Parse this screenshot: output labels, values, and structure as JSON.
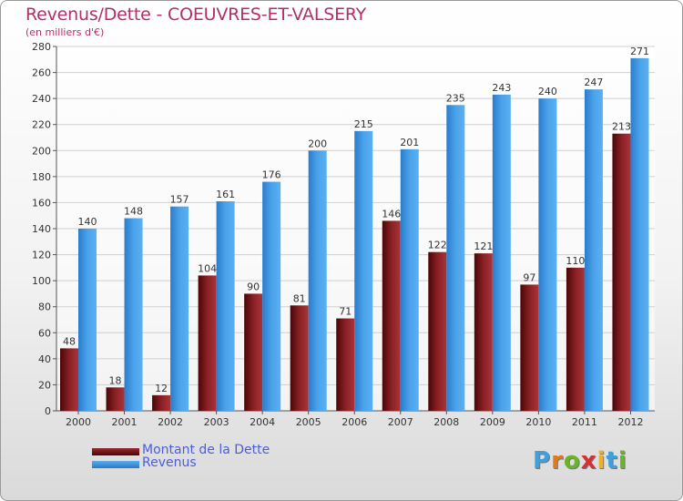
{
  "header": {
    "title": "Revenus/Dette - COEUVRES-ET-VALSERY",
    "subtitle": "(en milliers d'€)"
  },
  "legend": {
    "items": [
      {
        "label": "Montant de la Dette",
        "color": "#7a1518"
      },
      {
        "label": "Revenus",
        "color": "#3a8fdc"
      }
    ]
  },
  "brand": {
    "logo_text": "Proxiti",
    "letter_colors": [
      "#3fa0dc",
      "#e07a20",
      "#6ab42a",
      "#d63030",
      "#f0b020",
      "#3fa0dc",
      "#6ab42a"
    ]
  },
  "chart_data": {
    "type": "bar",
    "title": "Revenus/Dette - COEUVRES-ET-VALSERY",
    "subtitle": "(en milliers d'€)",
    "categories": [
      "2000",
      "2001",
      "2002",
      "2003",
      "2004",
      "2005",
      "2006",
      "2007",
      "2008",
      "2009",
      "2010",
      "2011",
      "2012"
    ],
    "series": [
      {
        "name": "Montant de la Dette",
        "values": [
          48,
          18,
          12,
          104,
          90,
          81,
          71,
          146,
          122,
          121,
          97,
          110,
          213
        ],
        "color": "#7a1518"
      },
      {
        "name": "Revenus",
        "values": [
          140,
          148,
          157,
          161,
          176,
          200,
          215,
          201,
          235,
          243,
          240,
          247,
          271
        ],
        "color": "#3a8fdc"
      }
    ],
    "yticks": [
      "0",
      "20",
      "40",
      "60",
      "80",
      "100",
      "120",
      "140",
      "160",
      "180",
      "200",
      "220",
      "240",
      "260",
      "280"
    ],
    "ylim": [
      0,
      280
    ],
    "grid": true,
    "legend_position": "bottom-left"
  }
}
